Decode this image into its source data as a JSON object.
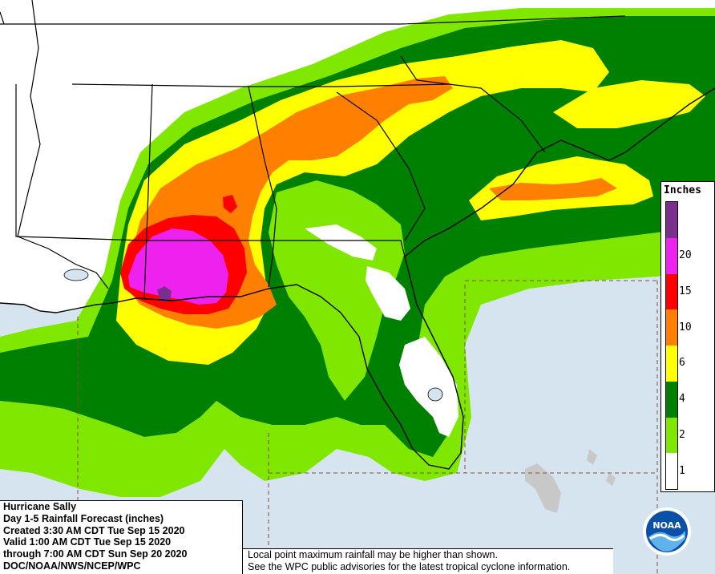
{
  "info": {
    "title": "Hurricane Sally",
    "subtitle": "Day 1-5 Rainfall Forecast (inches)",
    "created": "Created 3:30 AM CDT Tue Sep 15 2020",
    "valid": "Valid 1:00 AM CDT Tue Sep 15 2020",
    "through": "through 7:00 AM CDT Sun Sep 20 2020",
    "source": "DOC/NOAA/NWS/NCEP/WPC"
  },
  "note": {
    "line1": "Local point maximum rainfall may be higher than shown.",
    "line2": "See the WPC public advisories for the latest tropical cyclone information."
  },
  "legend": {
    "title": "Inches",
    "bins": [
      {
        "label": "",
        "color": "#7b2e8e"
      },
      {
        "label": "20",
        "color": "#ee22ee"
      },
      {
        "label": "15",
        "color": "#ff0000"
      },
      {
        "label": "10",
        "color": "#ff8000"
      },
      {
        "label": "6",
        "color": "#ffff00"
      },
      {
        "label": "4",
        "color": "#008000"
      },
      {
        "label": "2",
        "color": "#80e800"
      },
      {
        "label": "1",
        "color": "#ffffff"
      }
    ]
  },
  "colors": {
    "ocean": "#d6e4f0",
    "land": "#ffffff",
    "rain_1_2": "#80e800",
    "rain_2_4": "#008000",
    "rain_4_6": "#ffff00",
    "rain_6_10": "#ff8000",
    "rain_10_15": "#ff0000",
    "rain_15_20": "#ee22ee",
    "rain_20_plus": "#7b2e8e"
  },
  "logo": {
    "text": "NOAA"
  }
}
